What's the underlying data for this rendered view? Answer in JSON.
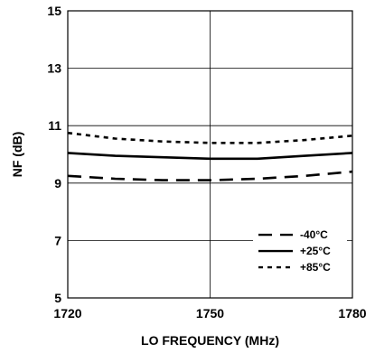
{
  "chart_data": {
    "type": "line",
    "title": "",
    "xlabel": "LO FREQUENCY (MHz)",
    "ylabel": "NF (dB)",
    "xlim": [
      1720,
      1780
    ],
    "ylim": [
      5,
      15
    ],
    "x_ticks": [
      1720,
      1750,
      1780
    ],
    "y_ticks": [
      5,
      7,
      9,
      11,
      13,
      15
    ],
    "grid": true,
    "legend_position": "lower-right",
    "series": [
      {
        "name": "-40°C",
        "line_style": "long-dash",
        "x": [
          1720,
          1730,
          1740,
          1750,
          1760,
          1770,
          1780
        ],
        "y": [
          9.25,
          9.15,
          9.1,
          9.1,
          9.15,
          9.25,
          9.4
        ]
      },
      {
        "name": "+25°C",
        "line_style": "solid",
        "x": [
          1720,
          1730,
          1740,
          1750,
          1760,
          1770,
          1780
        ],
        "y": [
          10.05,
          9.95,
          9.9,
          9.85,
          9.85,
          9.95,
          10.05
        ]
      },
      {
        "name": "+85°C",
        "line_style": "short-dash",
        "x": [
          1720,
          1730,
          1740,
          1750,
          1760,
          1770,
          1780
        ],
        "y": [
          10.75,
          10.55,
          10.45,
          10.4,
          10.4,
          10.5,
          10.65
        ]
      }
    ]
  }
}
